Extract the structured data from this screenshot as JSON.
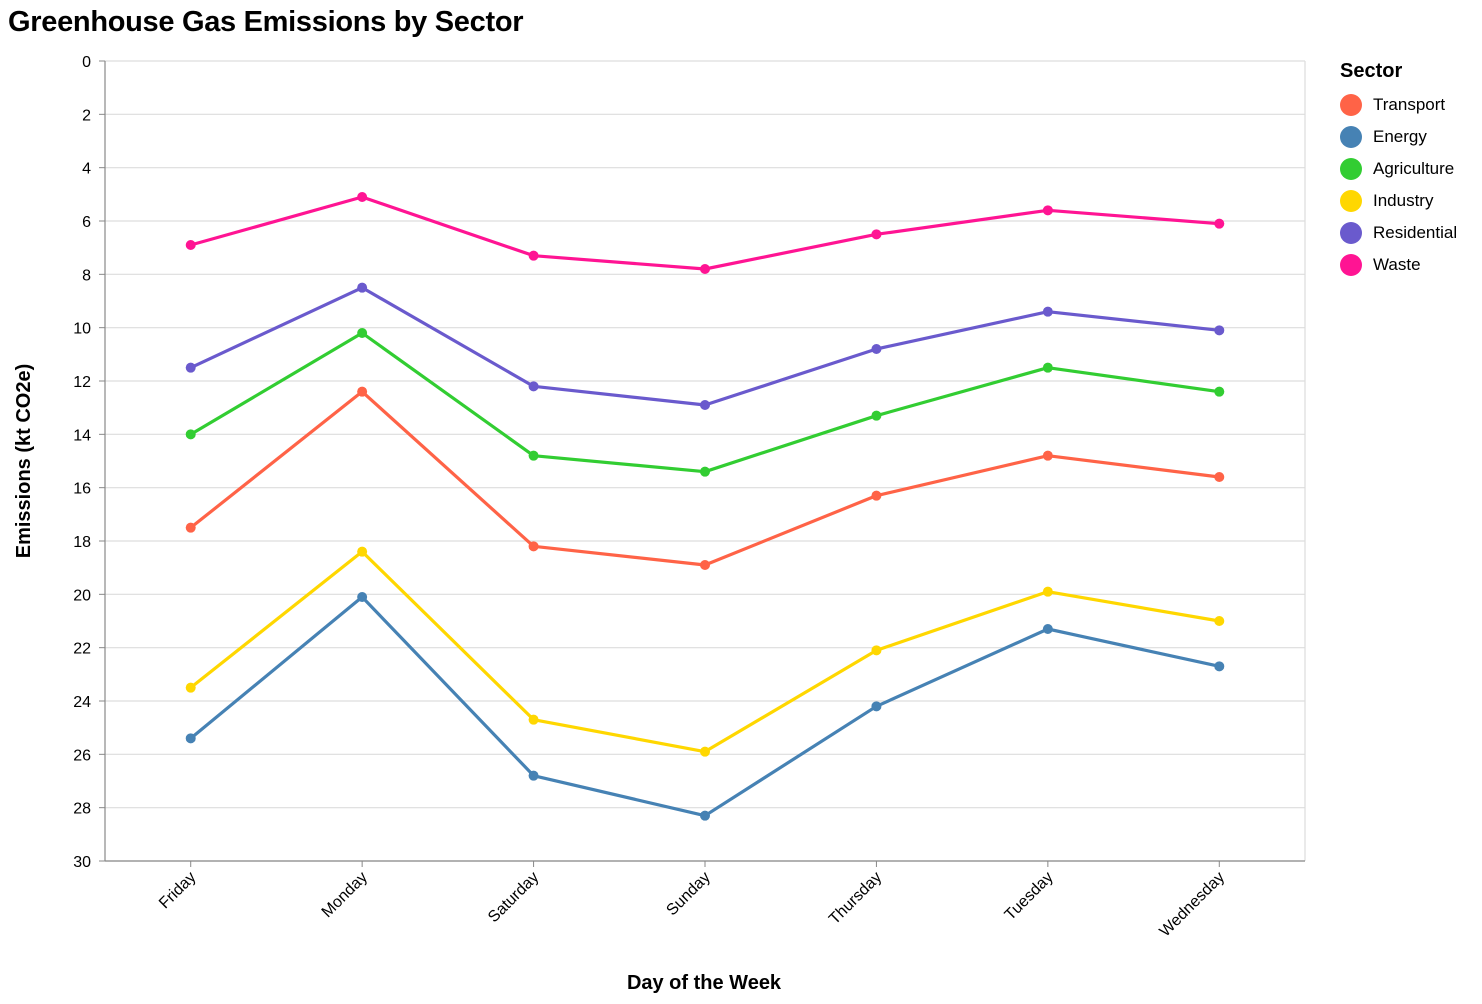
{
  "chart_data": {
    "type": "line",
    "title": "Greenhouse Gas Emissions by Sector",
    "xlabel": "Day of the Week",
    "ylabel": "Emissions (kt CO2e)",
    "categories": [
      "Friday",
      "Monday",
      "Saturday",
      "Sunday",
      "Thursday",
      "Tuesday",
      "Wednesday"
    ],
    "y_ticks": [
      0,
      2,
      4,
      6,
      8,
      10,
      12,
      14,
      16,
      18,
      20,
      22,
      24,
      26,
      28,
      30
    ],
    "ylim": [
      0,
      30
    ],
    "y_reversed": true,
    "grid": true,
    "legend": {
      "title": "Sector",
      "placement": "right"
    },
    "series": [
      {
        "name": "Transport",
        "color": "#ff6347",
        "values": [
          17.5,
          12.4,
          18.2,
          18.9,
          16.3,
          14.8,
          15.6
        ]
      },
      {
        "name": "Energy",
        "color": "#4682b4",
        "values": [
          25.4,
          20.1,
          26.8,
          28.3,
          24.2,
          21.3,
          22.7
        ]
      },
      {
        "name": "Agriculture",
        "color": "#32cd32",
        "values": [
          14.0,
          10.2,
          14.8,
          15.4,
          13.3,
          11.5,
          12.4
        ]
      },
      {
        "name": "Industry",
        "color": "#ffd700",
        "values": [
          23.5,
          18.4,
          24.7,
          25.9,
          22.1,
          19.9,
          21.0
        ]
      },
      {
        "name": "Residential",
        "color": "#6a5acd",
        "values": [
          11.5,
          8.5,
          12.2,
          12.9,
          10.8,
          9.4,
          10.1
        ]
      },
      {
        "name": "Waste",
        "color": "#ff1493",
        "values": [
          6.9,
          5.1,
          7.3,
          7.8,
          6.5,
          5.6,
          6.1
        ]
      }
    ]
  }
}
